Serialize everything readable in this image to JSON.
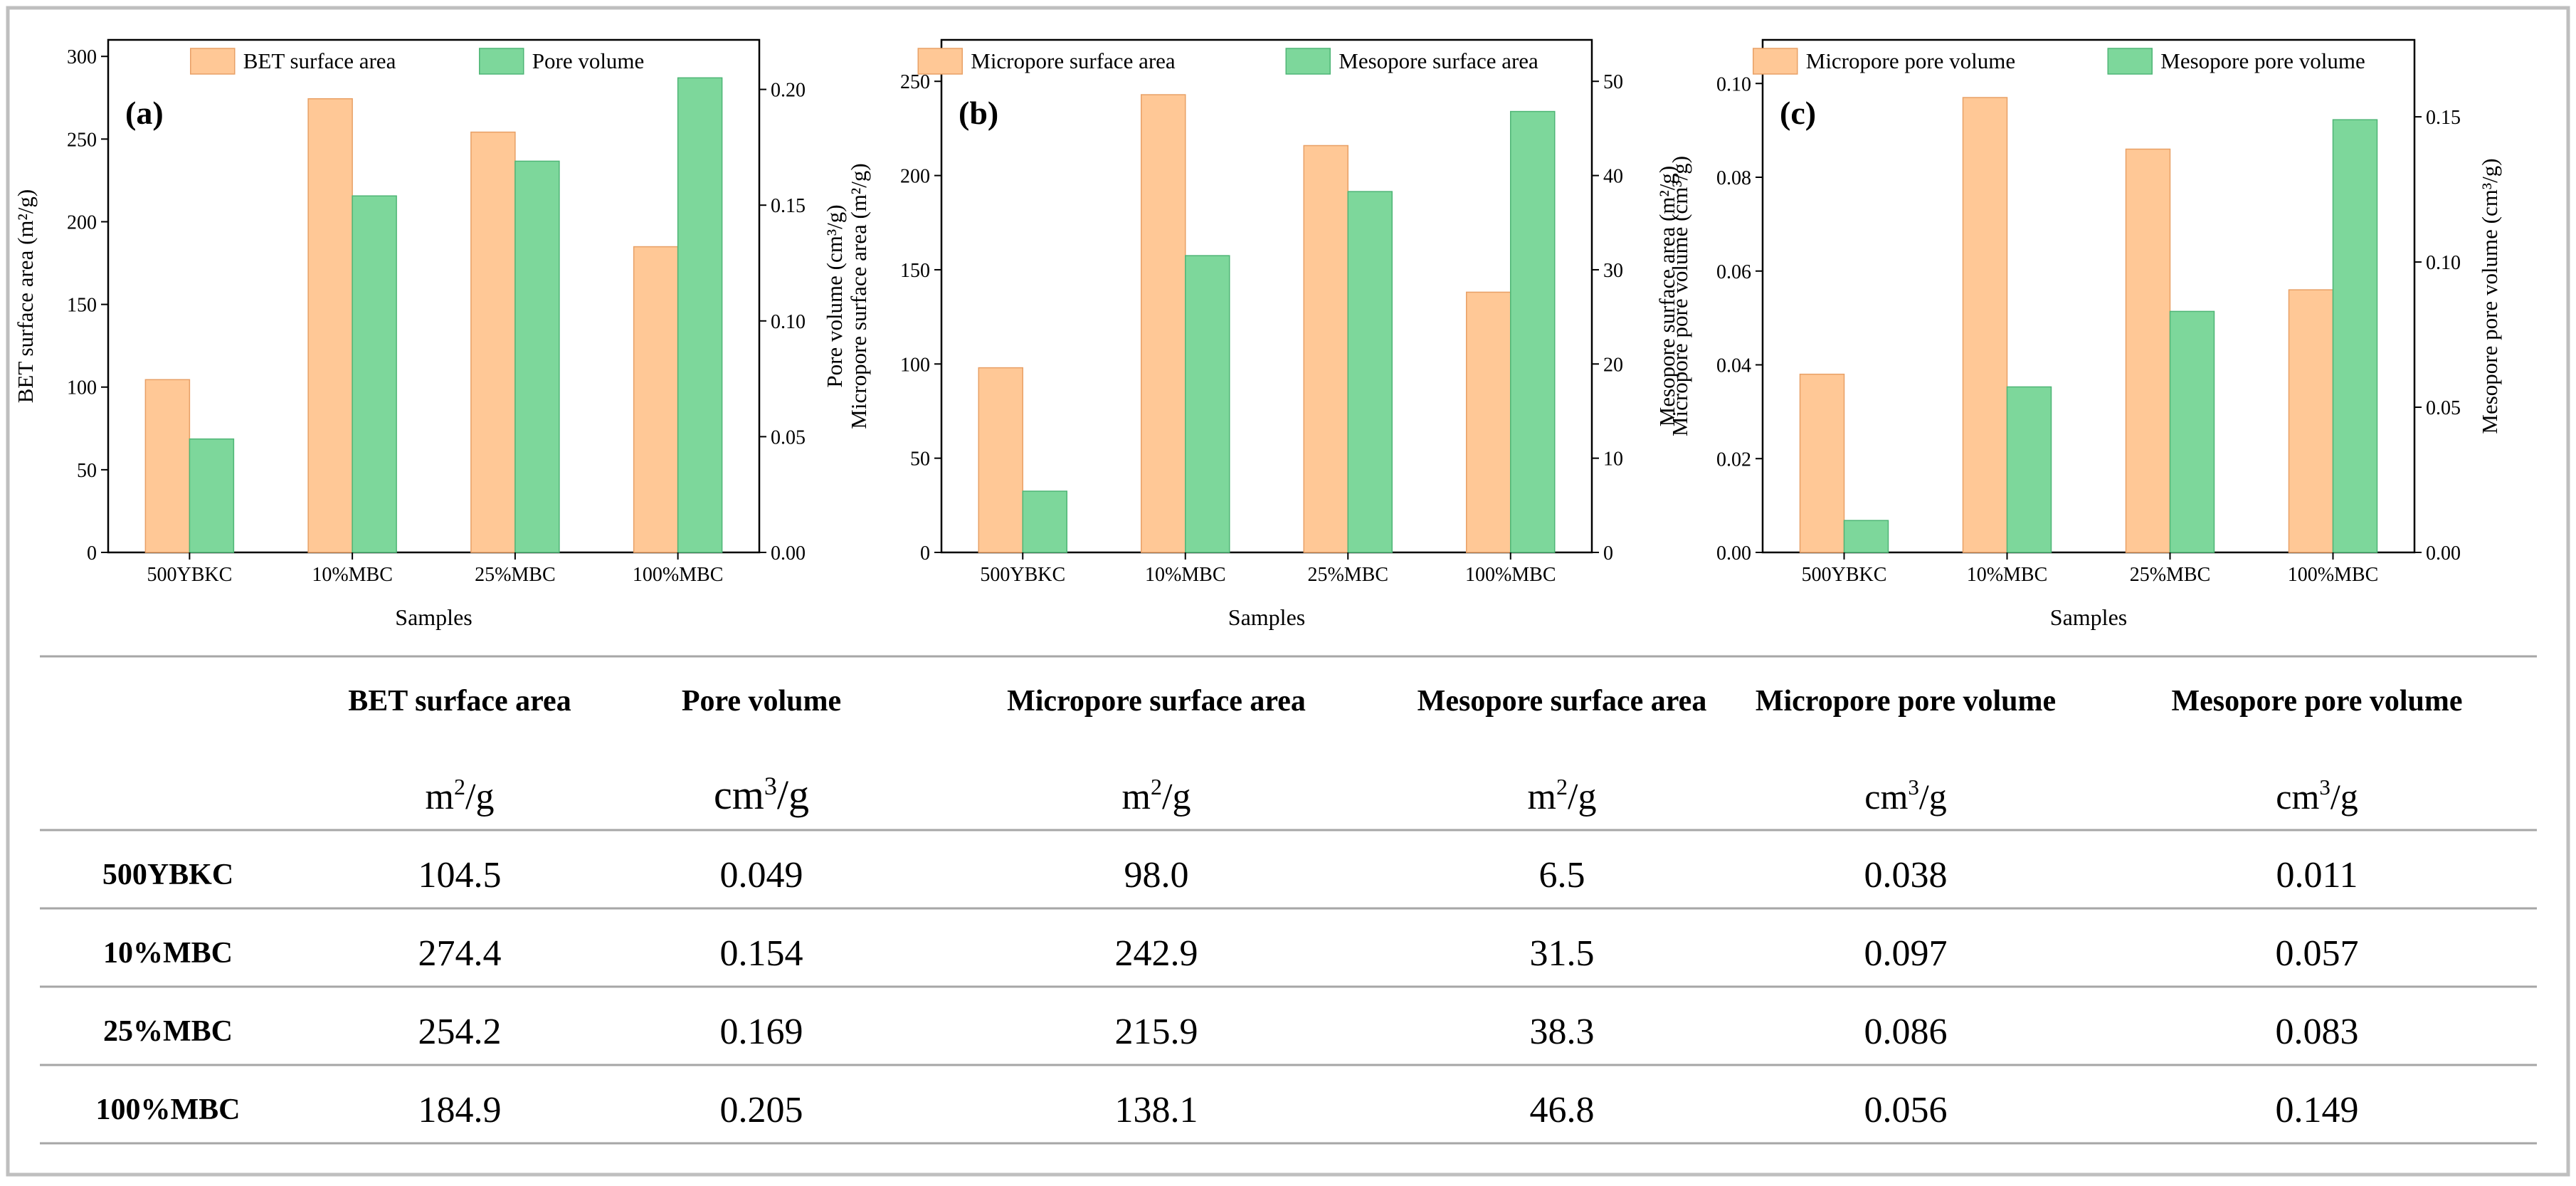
{
  "colors": {
    "orange": "#FFC896",
    "green": "#7DD79B",
    "orange_stroke": "#E8A066",
    "green_stroke": "#4FB576",
    "frame": "#BFBFBF",
    "rule": "#A6A6A6",
    "text": "#000000"
  },
  "chart_data": [
    {
      "type": "bar",
      "panel_label": "(a)",
      "categories": [
        "500YBKC",
        "10%MBC",
        "25%MBC",
        "100%MBC"
      ],
      "xlabel": "Samples",
      "series": [
        {
          "name": "BET surface area",
          "axis": "left",
          "values": [
            104.5,
            274.4,
            254.2,
            184.9
          ]
        },
        {
          "name": "Pore volume",
          "axis": "right",
          "values": [
            0.049,
            0.154,
            0.169,
            0.205
          ]
        }
      ],
      "left_axis": {
        "label": "BET surface area (m²/g)",
        "lim": [
          0,
          310
        ],
        "ticks": [
          "0",
          "50",
          "100",
          "150",
          "200",
          "250",
          "300"
        ]
      },
      "right_axis": {
        "label": "Pore volume (cm³/g)",
        "lim": [
          0,
          0.2214
        ],
        "ticks": [
          "0.00",
          "0.05",
          "0.10",
          "0.15",
          "0.20"
        ]
      },
      "legend": "top"
    },
    {
      "type": "bar",
      "panel_label": "(b)",
      "categories": [
        "500YBKC",
        "10%MBC",
        "25%MBC",
        "100%MBC"
      ],
      "xlabel": "Samples",
      "series": [
        {
          "name": "Micropore surface area",
          "axis": "left",
          "values": [
            98.0,
            242.9,
            215.9,
            138.1
          ]
        },
        {
          "name": "Mesopore surface area",
          "axis": "right",
          "values": [
            6.5,
            31.5,
            38.3,
            46.8
          ]
        }
      ],
      "left_axis": {
        "label": "Micropore surface area (m²/g)",
        "lim": [
          0,
          272
        ],
        "ticks": [
          "0",
          "50",
          "100",
          "150",
          "200",
          "250"
        ]
      },
      "right_axis": {
        "label": "Mesopore surface area (m²/g)",
        "lim": [
          0,
          54.4
        ],
        "ticks": [
          "0",
          "10",
          "20",
          "30",
          "40",
          "50"
        ]
      },
      "legend": "top"
    },
    {
      "type": "bar",
      "panel_label": "(c)",
      "categories": [
        "500YBKC",
        "10%MBC",
        "25%MBC",
        "100%MBC"
      ],
      "xlabel": "Samples",
      "series": [
        {
          "name": "Micropore pore volume",
          "axis": "left",
          "values": [
            0.038,
            0.097,
            0.086,
            0.056
          ]
        },
        {
          "name": "Mesopore pore volume",
          "axis": "right",
          "values": [
            0.011,
            0.057,
            0.083,
            0.149
          ]
        }
      ],
      "left_axis": {
        "label": "Micropore pore volume (cm³/g)",
        "lim": [
          0,
          0.1093
        ],
        "ticks": [
          "0.00",
          "0.02",
          "0.04",
          "0.06",
          "0.08",
          "0.10"
        ]
      },
      "right_axis": {
        "label": "Mesopore pore volume (cm³/g)",
        "lim": [
          0,
          0.1765
        ],
        "ticks": [
          "0.00",
          "0.05",
          "0.10",
          "0.15"
        ]
      },
      "legend": "top"
    }
  ],
  "table": {
    "columns": [
      {
        "name": "BET surface area",
        "unit_base": "m",
        "unit_exp": "2",
        "unit_tail": "/g"
      },
      {
        "name": "Pore volume",
        "unit_base": "cm",
        "unit_exp": "3",
        "unit_tail": "/g"
      },
      {
        "name": "Micropore surface area",
        "unit_base": "m",
        "unit_exp": "2",
        "unit_tail": "/g"
      },
      {
        "name": "Mesopore surface area",
        "unit_base": "m",
        "unit_exp": "2",
        "unit_tail": "/g"
      },
      {
        "name": "Micropore pore volume",
        "unit_base": "cm",
        "unit_exp": "3",
        "unit_tail": "/g"
      },
      {
        "name": "Mesopore pore volume",
        "unit_base": "cm",
        "unit_exp": "3",
        "unit_tail": "/g"
      }
    ],
    "rows": [
      {
        "label": "500YBKC",
        "values": [
          "104.5",
          "0.049",
          "98.0",
          "6.5",
          "0.038",
          "0.011"
        ]
      },
      {
        "label": "10%MBC",
        "values": [
          "274.4",
          "0.154",
          "242.9",
          "31.5",
          "0.097",
          "0.057"
        ]
      },
      {
        "label": "25%MBC",
        "values": [
          "254.2",
          "0.169",
          "215.9",
          "38.3",
          "0.086",
          "0.083"
        ]
      },
      {
        "label": "100%MBC",
        "values": [
          "184.9",
          "0.205",
          "138.1",
          "46.8",
          "0.056",
          "0.149"
        ]
      }
    ]
  }
}
